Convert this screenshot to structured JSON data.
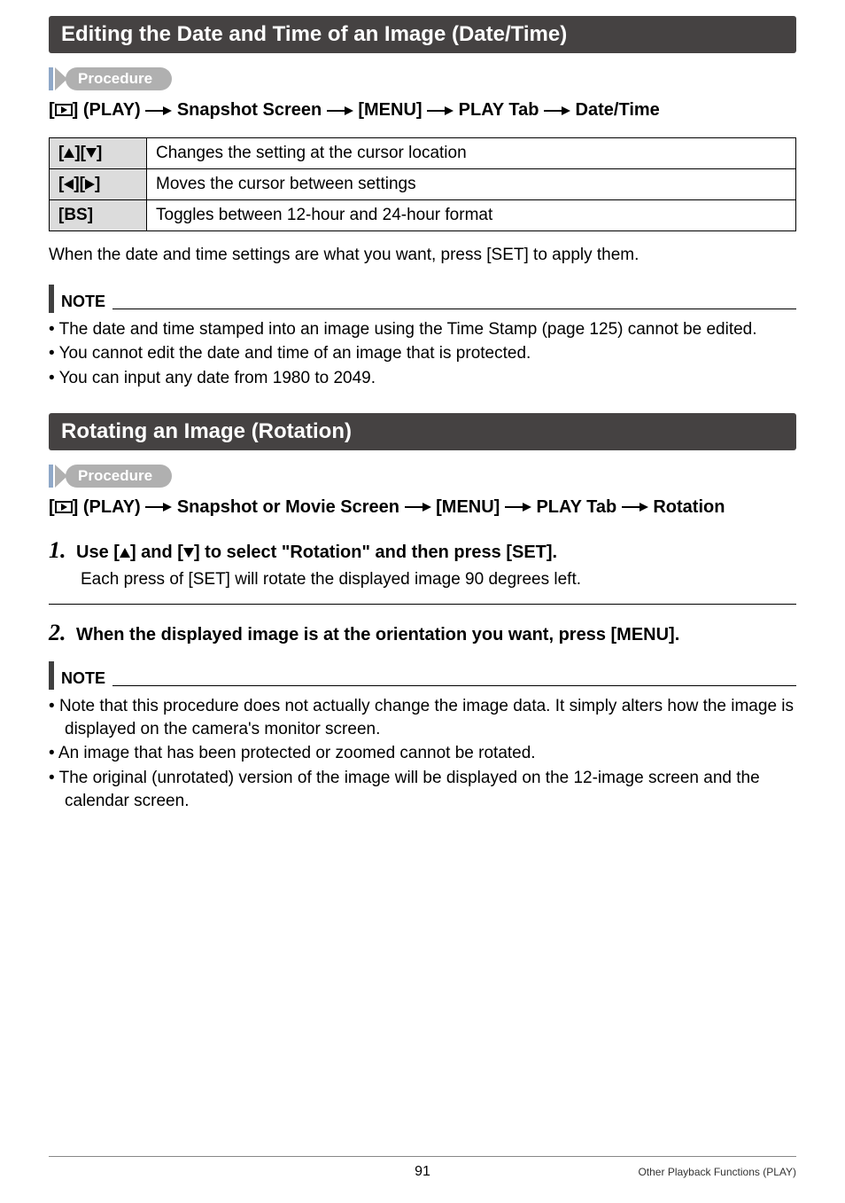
{
  "section1": {
    "title": "Editing the Date and Time of an Image (Date/Time)",
    "procedure_label": "Procedure",
    "path_html": "[{PLAY}] (PLAY) {ARR} Snapshot Screen {ARR} [MENU] {ARR} PLAY Tab {ARR} Date/Time",
    "table": {
      "rows": [
        {
          "key_html": "[{UP}][{DOWN}]",
          "val": "Changes the setting at the cursor location"
        },
        {
          "key_html": "[{LEFT}][{RIGHT}]",
          "val": "Moves the cursor between settings"
        },
        {
          "key_html": "[BS]",
          "val": "Toggles between 12-hour and 24-hour format"
        }
      ]
    },
    "after_table": "When the date and time settings are what you want, press [SET] to apply them.",
    "note_label": "NOTE",
    "notes": [
      "The date and time stamped into an image using the Time Stamp (page 125) cannot be edited.",
      "You cannot edit the date and time of an image that is protected.",
      "You can input any date from 1980 to 2049."
    ]
  },
  "section2": {
    "title": "Rotating an Image (Rotation)",
    "procedure_label": "Procedure",
    "path_html": "[{PLAY}] (PLAY) {ARR} Snapshot or Movie Screen {ARR} [MENU] {ARR} PLAY Tab {ARR} Rotation",
    "steps": [
      {
        "num": "1.",
        "head_html": "Use [{UP}] and [{DOWN}] to select \"Rotation\" and then press [SET].",
        "body": "Each press of [SET] will rotate the displayed image 90 degrees left."
      },
      {
        "num": "2.",
        "head_html": "When the displayed image is at the orientation you want, press [MENU].",
        "body": ""
      }
    ],
    "note_label": "NOTE",
    "notes": [
      "Note that this procedure does not actually change the image data. It simply alters how the image is displayed on the camera's monitor screen.",
      "An image that has been protected or zoomed cannot be rotated.",
      "The original (unrotated) version of the image will be displayed on the 12-image screen and the calendar screen."
    ]
  },
  "footer": {
    "page": "91",
    "right": "Other Playback Functions (PLAY)"
  },
  "colors": {
    "header_bg": "#454242",
    "proc_bar": "#8fa8c8",
    "proc_pill": "#b0b0b0",
    "keycell_bg": "#dcdcdc"
  }
}
